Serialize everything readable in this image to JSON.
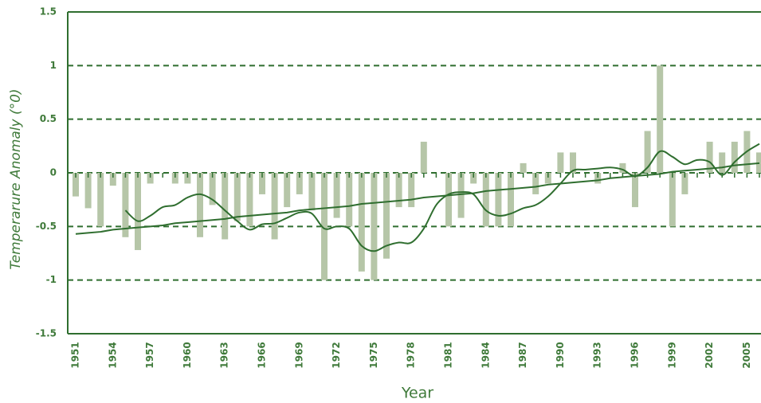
{
  "chart_data": {
    "type": "bar",
    "categories": [
      "1951",
      null,
      null,
      "1954",
      null,
      null,
      "1957",
      null,
      null,
      "1960",
      null,
      null,
      "1963",
      null,
      null,
      "1966",
      null,
      null,
      "1969",
      null,
      null,
      "1972",
      null,
      null,
      "1975",
      null,
      null,
      "1978",
      null,
      null,
      "1981",
      null,
      null,
      "1984",
      null,
      null,
      "1987",
      null,
      null,
      "1990",
      null,
      null,
      "1993",
      null,
      null,
      "1996",
      null,
      null,
      "1999",
      null,
      null,
      "2002",
      null,
      null,
      "2005",
      null
    ],
    "series": [
      {
        "type": "bar",
        "color": "#b6c6a8",
        "values": [
          -0.22,
          -0.33,
          -0.5,
          -0.12,
          -0.6,
          -0.72,
          -0.1,
          0,
          -0.1,
          -0.1,
          -0.6,
          -0.3,
          -0.62,
          -0.45,
          -0.5,
          -0.2,
          -0.62,
          -0.32,
          -0.2,
          -0.35,
          -1,
          -0.42,
          -0.5,
          -0.92,
          -1,
          -0.8,
          -0.32,
          -0.32,
          0.29,
          0,
          -0.5,
          -0.42,
          -0.1,
          -0.5,
          -0.5,
          -0.5,
          0.09,
          -0.2,
          -0.1,
          0.19,
          0.19,
          0,
          -0.1,
          0,
          0.09,
          -0.32,
          0.39,
          1,
          -0.5,
          -0.2,
          0,
          0.29,
          0.19,
          0.29,
          0.39,
          0.19
        ]
      },
      {
        "type": "line",
        "smooth": true,
        "color": "#2f6e2f",
        "values": [
          null,
          null,
          null,
          null,
          -0.35,
          -0.45,
          -0.4,
          -0.32,
          -0.3,
          -0.23,
          -0.2,
          -0.25,
          -0.35,
          -0.45,
          -0.53,
          -0.48,
          -0.47,
          -0.42,
          -0.37,
          -0.38,
          -0.52,
          -0.5,
          -0.52,
          -0.68,
          -0.73,
          -0.68,
          -0.65,
          -0.65,
          -0.52,
          -0.3,
          -0.2,
          -0.18,
          -0.2,
          -0.35,
          -0.4,
          -0.38,
          -0.33,
          -0.3,
          -0.22,
          -0.1,
          0.02,
          0.03,
          0.04,
          0.05,
          0.03,
          -0.03,
          0.05,
          0.2,
          0.15,
          0.08,
          0.12,
          0.1,
          -0.02,
          0.1,
          0.2,
          0.27
        ]
      },
      {
        "type": "line",
        "smooth": false,
        "color": "#2f6e2f",
        "values": [
          -0.57,
          -0.56,
          -0.55,
          -0.53,
          -0.52,
          -0.51,
          -0.5,
          -0.49,
          -0.47,
          -0.46,
          -0.45,
          -0.44,
          -0.43,
          -0.41,
          -0.4,
          -0.39,
          -0.38,
          -0.37,
          -0.35,
          -0.34,
          -0.33,
          -0.32,
          -0.31,
          -0.29,
          -0.28,
          -0.27,
          -0.26,
          -0.25,
          -0.23,
          -0.22,
          -0.21,
          -0.2,
          -0.19,
          -0.17,
          -0.16,
          -0.15,
          -0.14,
          -0.13,
          -0.11,
          -0.1,
          -0.09,
          -0.08,
          -0.07,
          -0.05,
          -0.04,
          -0.03,
          -0.02,
          -0.01,
          0.01,
          0.02,
          0.03,
          0.04,
          0.05,
          0.07,
          0.08,
          0.09
        ]
      }
    ],
    "ylim": [
      -1.5,
      1.5
    ],
    "yticks": [
      1.5,
      1,
      0.5,
      0,
      -0.5,
      -1,
      -1.5
    ],
    "grid": true,
    "xlabel": "Year",
    "ylabel": "Temperarure Anomaly (°0)"
  }
}
